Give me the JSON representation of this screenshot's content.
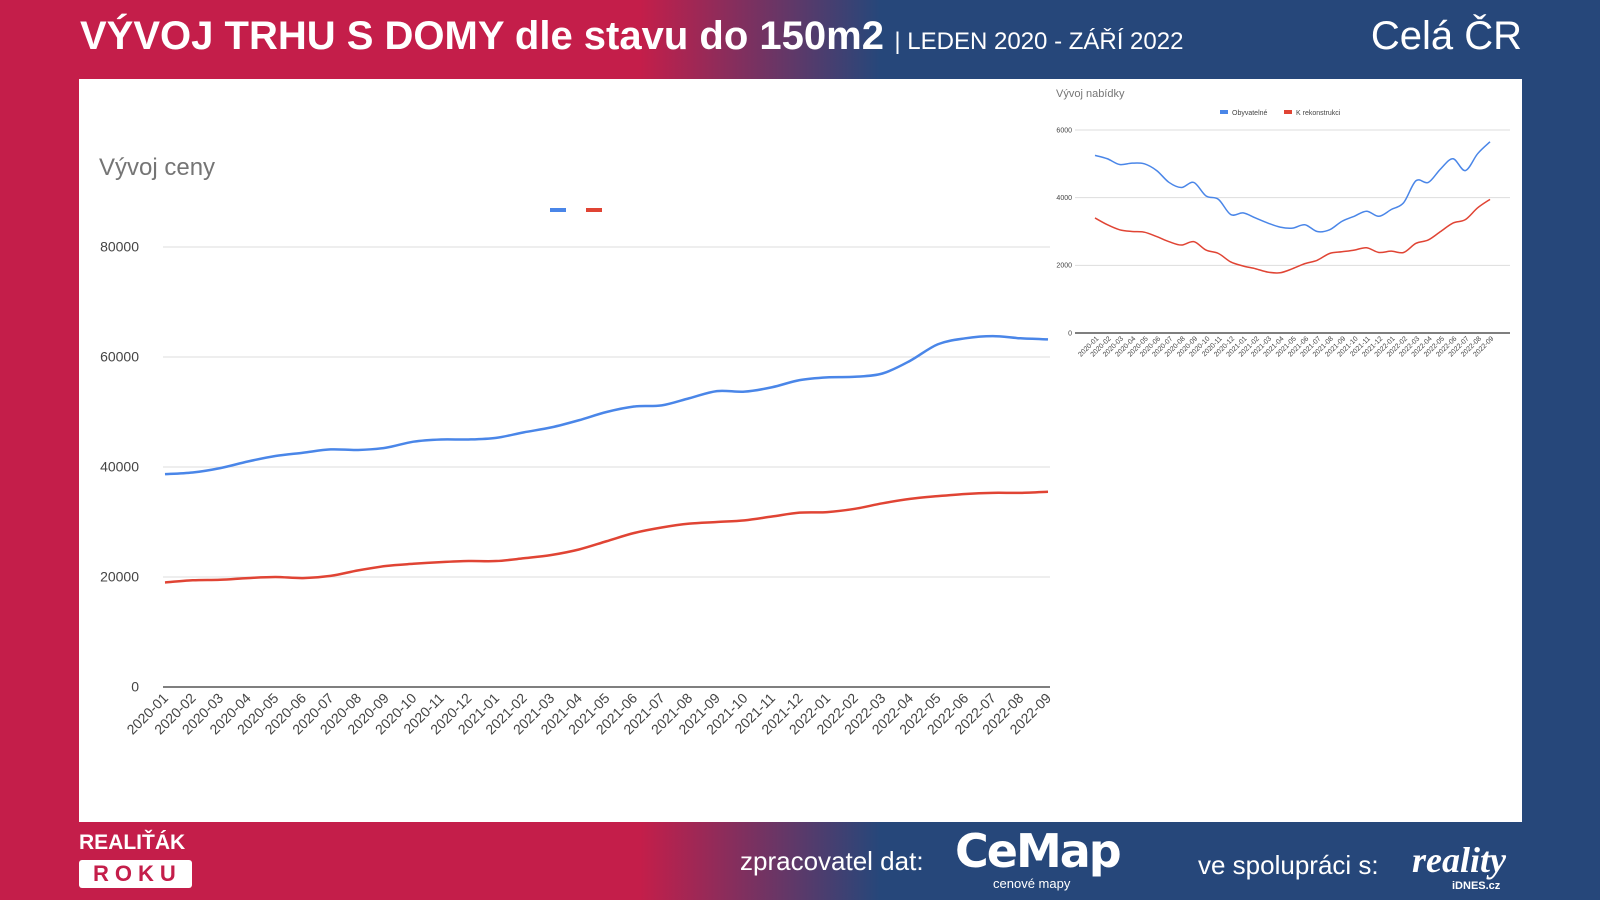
{
  "header": {
    "title": "VÝVOJ TRHU S DOMY dle stavu do 150m2",
    "subtitle": "| LEDEN 2020 - ZÁŘÍ 2022",
    "region": "Celá ČR"
  },
  "footer": {
    "brand_top": "REALIŤÁK",
    "brand_bottom": "ROKU",
    "processor_label": "zpracovatel dat:",
    "processor_logo": "CeMap",
    "processor_sub": "cenové mapy",
    "partner_label": "ve spolupráci s:",
    "partner_logo": "reality",
    "partner_sub": "iDNES.cz"
  },
  "colors": {
    "blue": "#4a86e8",
    "red": "#e04434",
    "bg_red": "#c41e4a",
    "bg_blue": "#26477a"
  },
  "chart_data": [
    {
      "type": "line",
      "title": "Vývoj ceny",
      "ylim": [
        0,
        80000
      ],
      "yticks": [
        0,
        20000,
        40000,
        60000,
        80000
      ],
      "x": [
        "2020-01",
        "2020-02",
        "2020-03",
        "2020-04",
        "2020-05",
        "2020-06",
        "2020-07",
        "2020-08",
        "2020-09",
        "2020-10",
        "2020-11",
        "2020-12",
        "2021-01",
        "2021-02",
        "2021-03",
        "2021-04",
        "2021-05",
        "2021-06",
        "2021-07",
        "2021-08",
        "2021-09",
        "2021-10",
        "2021-11",
        "2021-12",
        "2022-01",
        "2022-02",
        "2022-03",
        "2022-04",
        "2022-05",
        "2022-06",
        "2022-07",
        "2022-08",
        "2022-09"
      ],
      "series": [
        {
          "name": "",
          "color": "#4a86e8",
          "values": [
            38700,
            39000,
            39800,
            41000,
            42000,
            42600,
            43200,
            43100,
            43500,
            44600,
            45000,
            45000,
            45300,
            46300,
            47200,
            48500,
            50000,
            51000,
            51200,
            52500,
            53800,
            53700,
            54500,
            55800,
            56300,
            56400,
            57000,
            59300,
            62300,
            63400,
            63800,
            63400,
            63200
          ]
        },
        {
          "name": "",
          "color": "#e04434",
          "values": [
            19000,
            19400,
            19500,
            19800,
            20000,
            19800,
            20200,
            21200,
            22000,
            22400,
            22700,
            22900,
            22900,
            23400,
            24000,
            25000,
            26500,
            28000,
            29000,
            29700,
            30000,
            30300,
            31000,
            31700,
            31800,
            32400,
            33400,
            34200,
            34700,
            35100,
            35300,
            35300,
            35500
          ]
        }
      ]
    },
    {
      "type": "line",
      "title": "Vývoj nabídky",
      "ylim": [
        0,
        6000
      ],
      "yticks": [
        0,
        2000,
        4000,
        6000
      ],
      "x": [
        "2020-01",
        "2020-02",
        "2020-03",
        "2020-04",
        "2020-05",
        "2020-06",
        "2020-07",
        "2020-08",
        "2020-09",
        "2020-10",
        "2020-11",
        "2020-12",
        "2021-01",
        "2021-02",
        "2021-03",
        "2021-04",
        "2021-05",
        "2021-06",
        "2021-07",
        "2021-08",
        "2021-09",
        "2021-10",
        "2021-11",
        "2021-12",
        "2022-01",
        "2022-02",
        "2022-03",
        "2022-04",
        "2022-05",
        "2022-06",
        "2022-07",
        "2022-08",
        "2022-09"
      ],
      "series": [
        {
          "name": "Obyvatelné",
          "color": "#4a86e8",
          "values": [
            5250,
            5150,
            4980,
            5020,
            5000,
            4800,
            4450,
            4300,
            4450,
            4050,
            3950,
            3500,
            3550,
            3400,
            3250,
            3130,
            3100,
            3200,
            3000,
            3050,
            3300,
            3450,
            3600,
            3450,
            3650,
            3850,
            4500,
            4450,
            4850,
            5150,
            4800,
            5300,
            5650
          ]
        },
        {
          "name": "K rekonstrukci",
          "color": "#e04434",
          "values": [
            3400,
            3200,
            3050,
            3000,
            2980,
            2850,
            2700,
            2600,
            2700,
            2450,
            2350,
            2100,
            1980,
            1900,
            1800,
            1780,
            1900,
            2050,
            2150,
            2350,
            2400,
            2450,
            2520,
            2380,
            2420,
            2380,
            2650,
            2750,
            3000,
            3250,
            3350,
            3700,
            3950
          ]
        }
      ]
    }
  ]
}
